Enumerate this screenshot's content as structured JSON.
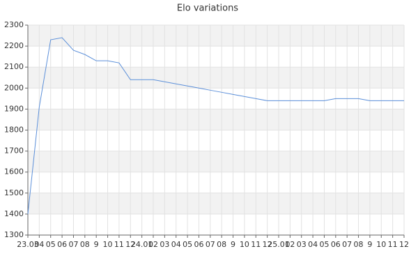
{
  "chart_data": {
    "type": "line",
    "title": "Elo variations",
    "categories": [
      "23.03",
      "04",
      "05",
      "06",
      "07",
      "08",
      "9",
      "10",
      "11",
      "12",
      "24.01",
      "02",
      "03",
      "04",
      "05",
      "06",
      "07",
      "08",
      "9",
      "10",
      "11",
      "12",
      "25.01",
      "02",
      "03",
      "04",
      "05",
      "06",
      "07",
      "08",
      "9",
      "10",
      "11",
      "12"
    ],
    "series": [
      {
        "name": "Elo",
        "color": "#5b8fd9",
        "values": [
          1400,
          1910,
          2230,
          2240,
          2180,
          2160,
          2130,
          2130,
          2120,
          2040,
          2040,
          2040,
          2030,
          2020,
          2010,
          2000,
          1990,
          1980,
          1970,
          1960,
          1950,
          1940,
          1940,
          1940,
          1940,
          1940,
          1940,
          1950,
          1950,
          1950,
          1940,
          1940,
          1940,
          1940
        ]
      }
    ],
    "ylim": [
      1300,
      2300
    ],
    "yticks": [
      1300,
      1400,
      1500,
      1600,
      1700,
      1800,
      1900,
      2000,
      2100,
      2200,
      2300
    ],
    "grid": true,
    "bands": true
  }
}
